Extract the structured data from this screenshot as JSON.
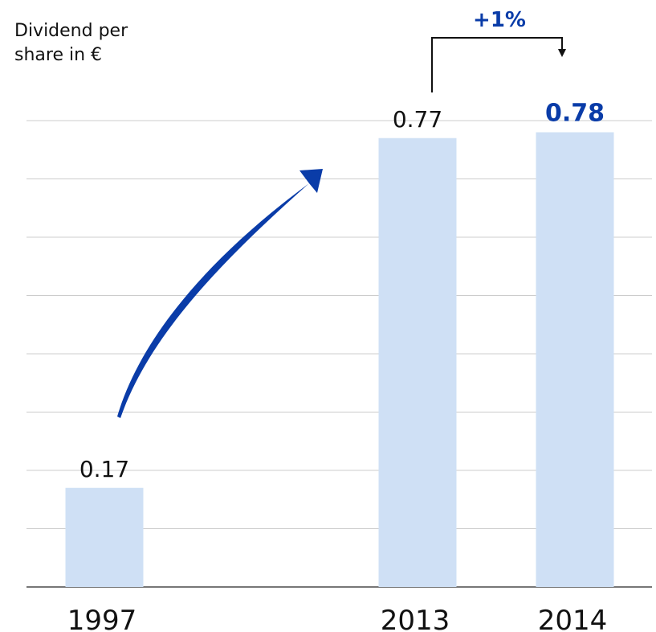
{
  "chart_data": {
    "type": "bar",
    "y_label": "Dividend per share in €",
    "categories": [
      "1997",
      "2013",
      "2014"
    ],
    "values": [
      0.17,
      0.77,
      0.78
    ],
    "color": "#cfe0f5",
    "highlight_color": "#0a3ca8",
    "ylim": [
      0,
      0.8
    ],
    "yticks": [
      0,
      0.1,
      0.2,
      0.3,
      0.4,
      0.5,
      0.6,
      0.7,
      0.8
    ],
    "grid": true,
    "annotation": "+1%"
  }
}
